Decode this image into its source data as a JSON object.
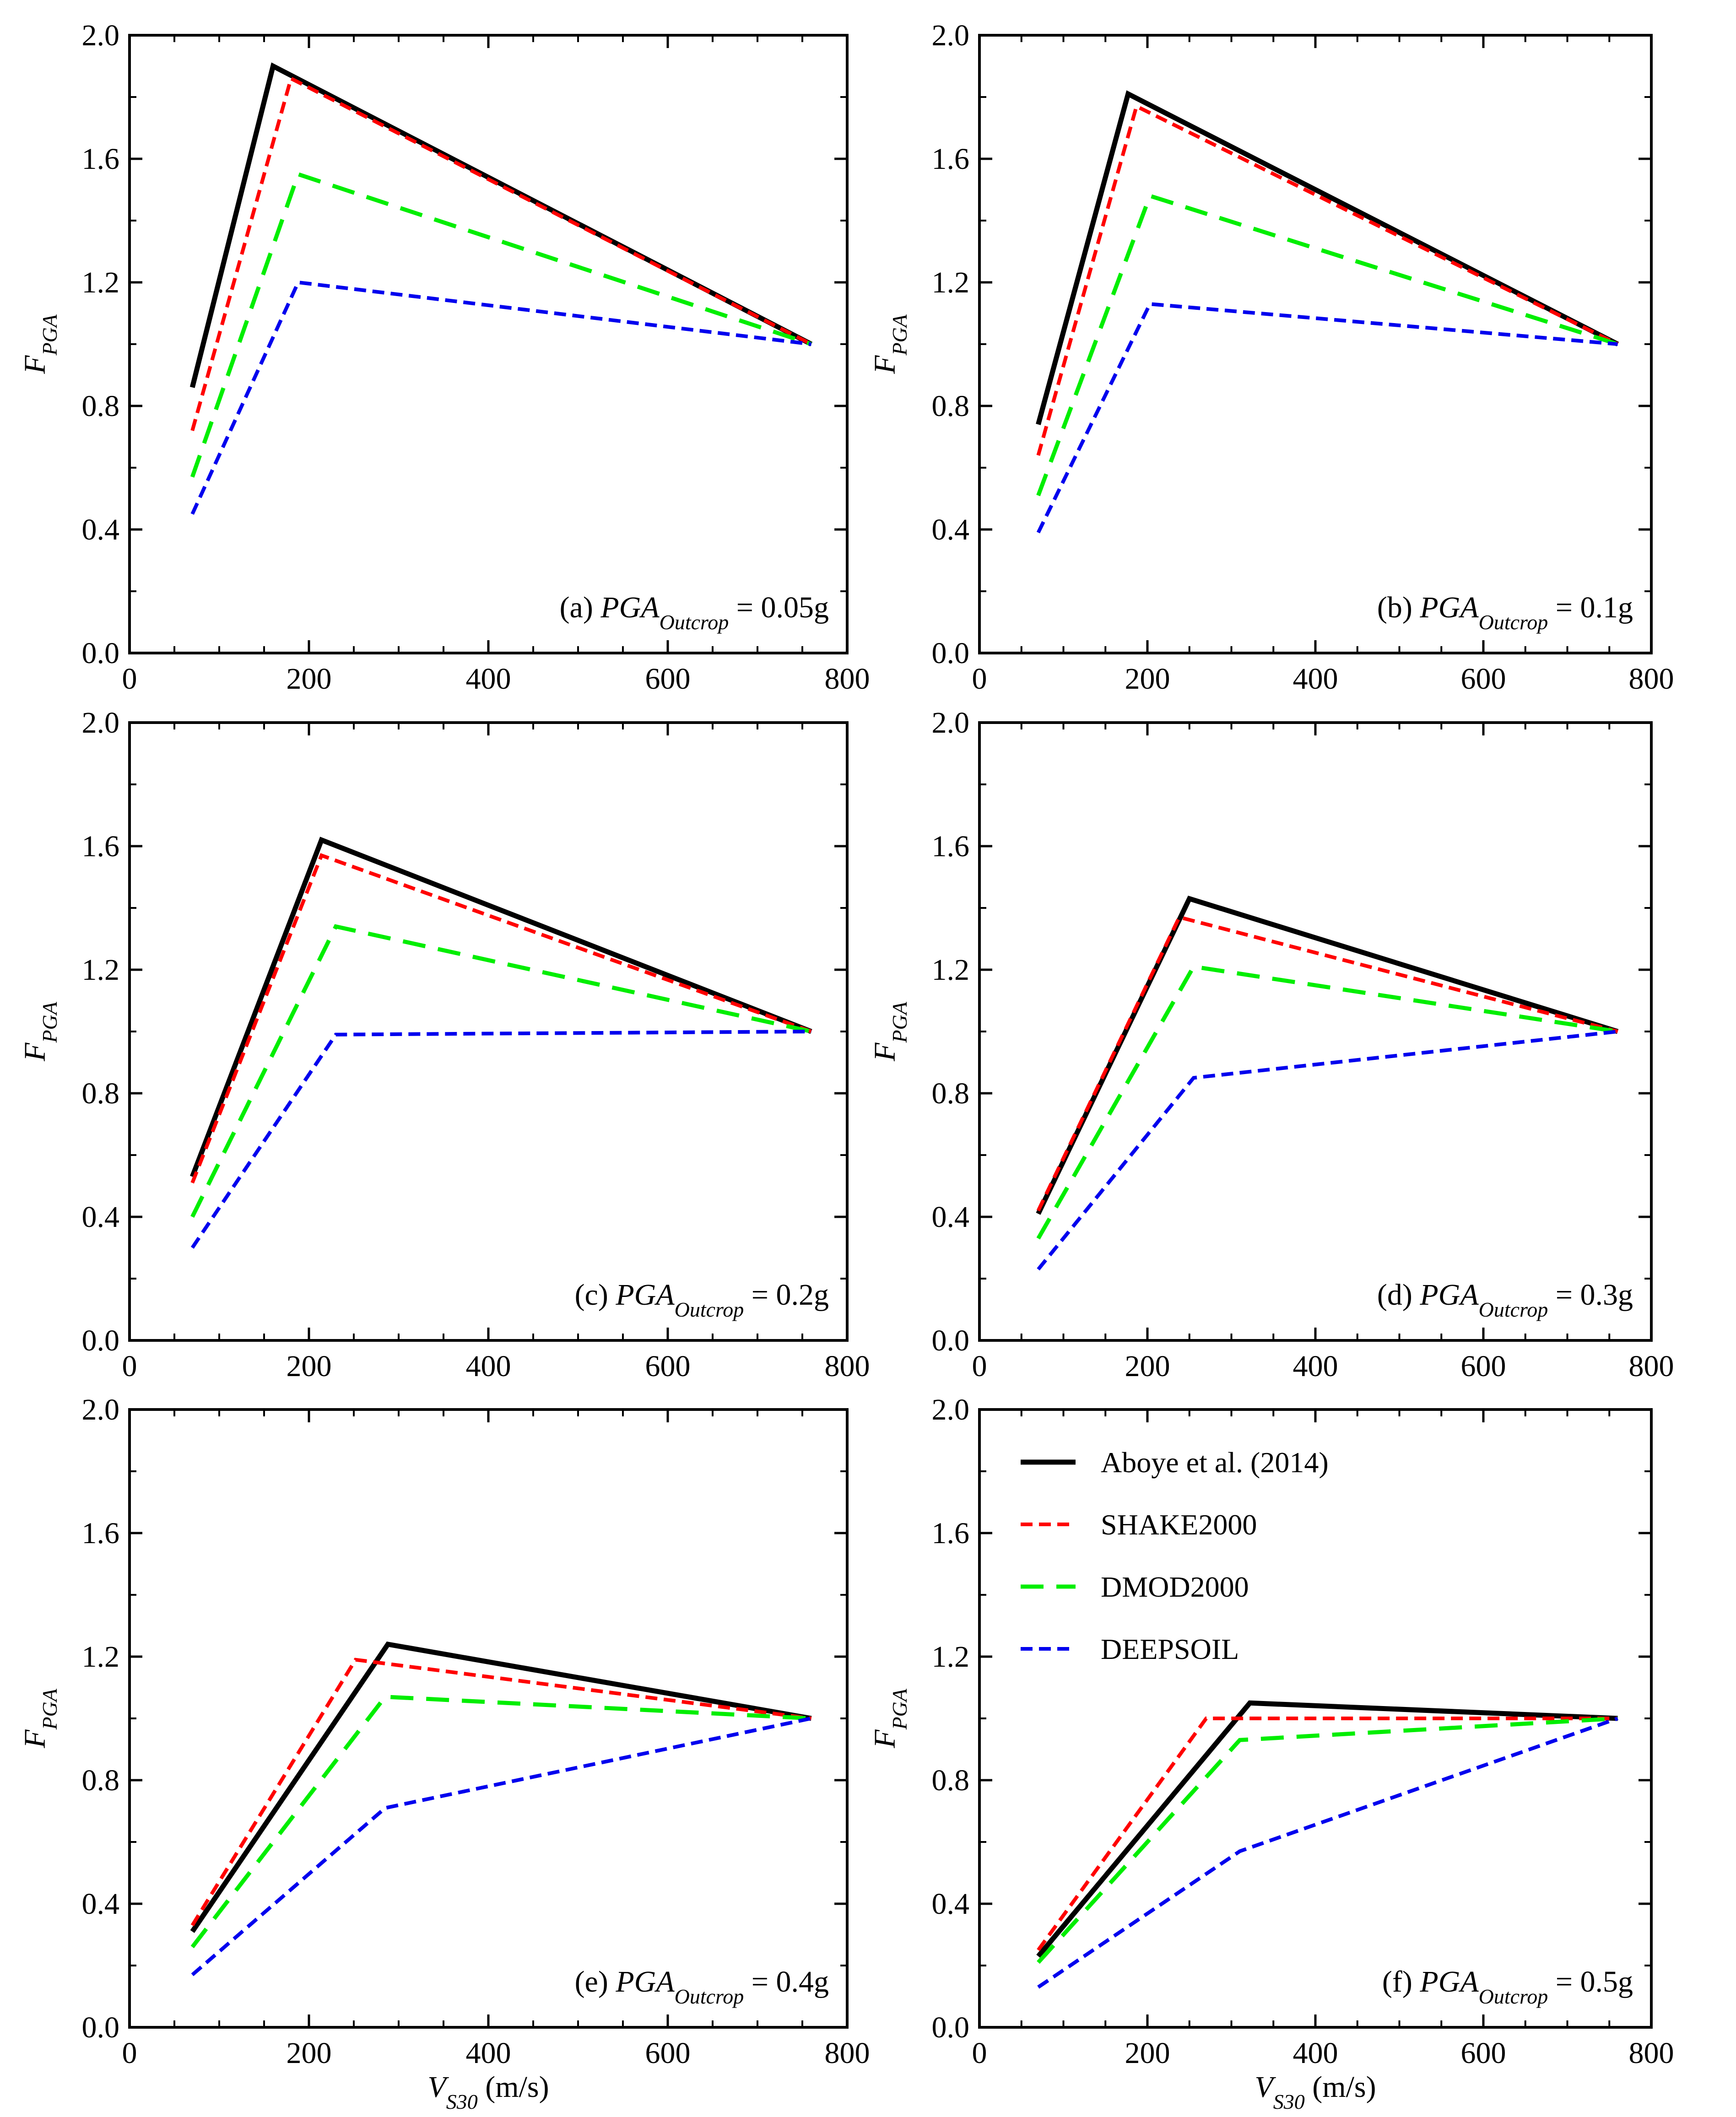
{
  "chart_data": [
    {
      "id": "a",
      "type": "line",
      "annotation": {
        "prefix": "(a) ",
        "base": "PGA",
        "sub": "Outcrop",
        "suffix": " = 0.05g"
      },
      "xlabel": {
        "base": "V",
        "sub": "S30",
        "unit": " (m/s)"
      },
      "ylabel": {
        "base": "F",
        "sub": "PGA"
      },
      "xlim": [
        0,
        800
      ],
      "ylim": [
        0.0,
        2.0
      ],
      "xticks": [
        "0",
        "200",
        "400",
        "600",
        "800"
      ],
      "yticks": [
        "0.0",
        "0.4",
        "0.8",
        "1.2",
        "1.6",
        "2.0"
      ],
      "series": [
        {
          "name": "Aboye et al. (2014)",
          "x": [
            70,
            160,
            760
          ],
          "y": [
            0.86,
            1.9,
            1.0
          ]
        },
        {
          "name": "SHAKE2000",
          "x": [
            70,
            180,
            760
          ],
          "y": [
            0.72,
            1.86,
            1.0
          ]
        },
        {
          "name": "DMOD2000",
          "x": [
            70,
            188,
            760
          ],
          "y": [
            0.57,
            1.55,
            1.0
          ]
        },
        {
          "name": "DEEPSOIL",
          "x": [
            70,
            188,
            760
          ],
          "y": [
            0.45,
            1.2,
            1.0
          ]
        }
      ]
    },
    {
      "id": "b",
      "type": "line",
      "annotation": {
        "prefix": "(b) ",
        "base": "PGA",
        "sub": "Outcrop",
        "suffix": " = 0.1g"
      },
      "xlabel": {
        "base": "V",
        "sub": "S30",
        "unit": " (m/s)"
      },
      "ylabel": {
        "base": "F",
        "sub": "PGA"
      },
      "xlim": [
        0,
        800
      ],
      "ylim": [
        0.0,
        2.0
      ],
      "xticks": [
        "0",
        "200",
        "400",
        "600",
        "800"
      ],
      "yticks": [
        "0.0",
        "0.4",
        "0.8",
        "1.2",
        "1.6",
        "2.0"
      ],
      "series": [
        {
          "name": "Aboye et al. (2014)",
          "x": [
            70,
            177,
            760
          ],
          "y": [
            0.74,
            1.81,
            1.0
          ]
        },
        {
          "name": "SHAKE2000",
          "x": [
            70,
            187,
            760
          ],
          "y": [
            0.64,
            1.77,
            1.0
          ]
        },
        {
          "name": "DMOD2000",
          "x": [
            70,
            203,
            760
          ],
          "y": [
            0.51,
            1.48,
            1.0
          ]
        },
        {
          "name": "DEEPSOIL",
          "x": [
            70,
            203,
            760
          ],
          "y": [
            0.39,
            1.13,
            1.0
          ]
        }
      ]
    },
    {
      "id": "c",
      "type": "line",
      "annotation": {
        "prefix": "(c) ",
        "base": "PGA",
        "sub": "Outcrop",
        "suffix": " = 0.2g"
      },
      "xlabel": {
        "base": "V",
        "sub": "S30",
        "unit": " (m/s)"
      },
      "ylabel": {
        "base": "F",
        "sub": "PGA"
      },
      "xlim": [
        0,
        800
      ],
      "ylim": [
        0.0,
        2.0
      ],
      "xticks": [
        "0",
        "200",
        "400",
        "600",
        "800"
      ],
      "yticks": [
        "0.0",
        "0.4",
        "0.8",
        "1.2",
        "1.6",
        "2.0"
      ],
      "series": [
        {
          "name": "Aboye et al. (2014)",
          "x": [
            70,
            214,
            760
          ],
          "y": [
            0.53,
            1.62,
            1.0
          ]
        },
        {
          "name": "SHAKE2000",
          "x": [
            70,
            214,
            760
          ],
          "y": [
            0.51,
            1.57,
            1.0
          ]
        },
        {
          "name": "DMOD2000",
          "x": [
            70,
            230,
            760
          ],
          "y": [
            0.4,
            1.34,
            1.0
          ]
        },
        {
          "name": "DEEPSOIL",
          "x": [
            70,
            230,
            760
          ],
          "y": [
            0.3,
            0.99,
            1.0
          ]
        }
      ]
    },
    {
      "id": "d",
      "type": "line",
      "annotation": {
        "prefix": "(d) ",
        "base": "PGA",
        "sub": "Outcrop",
        "suffix": " = 0.3g"
      },
      "xlabel": {
        "base": "V",
        "sub": "S30",
        "unit": " (m/s)"
      },
      "ylabel": {
        "base": "F",
        "sub": "PGA"
      },
      "xlim": [
        0,
        800
      ],
      "ylim": [
        0.0,
        2.0
      ],
      "xticks": [
        "0",
        "200",
        "400",
        "600",
        "800"
      ],
      "yticks": [
        "0.0",
        "0.4",
        "0.8",
        "1.2",
        "1.6",
        "2.0"
      ],
      "series": [
        {
          "name": "Aboye et al. (2014)",
          "x": [
            70,
            250,
            760
          ],
          "y": [
            0.41,
            1.43,
            1.0
          ]
        },
        {
          "name": "SHAKE2000",
          "x": [
            70,
            238,
            760
          ],
          "y": [
            0.42,
            1.37,
            1.0
          ]
        },
        {
          "name": "DMOD2000",
          "x": [
            70,
            255,
            760
          ],
          "y": [
            0.33,
            1.21,
            1.0
          ]
        },
        {
          "name": "DEEPSOIL",
          "x": [
            70,
            255,
            760
          ],
          "y": [
            0.23,
            0.85,
            1.0
          ]
        }
      ]
    },
    {
      "id": "e",
      "type": "line",
      "annotation": {
        "prefix": "(e) ",
        "base": "PGA",
        "sub": "Outcrop",
        "suffix": " = 0.4g"
      },
      "xlabel": {
        "base": "V",
        "sub": "S30",
        "unit": " (m/s)"
      },
      "ylabel": {
        "base": "F",
        "sub": "PGA"
      },
      "xlim": [
        0,
        800
      ],
      "ylim": [
        0.0,
        2.0
      ],
      "xticks": [
        "0",
        "200",
        "400",
        "600",
        "800"
      ],
      "yticks": [
        "0.0",
        "0.4",
        "0.8",
        "1.2",
        "1.6",
        "2.0"
      ],
      "series": [
        {
          "name": "Aboye et al. (2014)",
          "x": [
            70,
            288,
            760
          ],
          "y": [
            0.31,
            1.24,
            1.0
          ]
        },
        {
          "name": "SHAKE2000",
          "x": [
            70,
            252,
            760
          ],
          "y": [
            0.33,
            1.19,
            1.0
          ]
        },
        {
          "name": "DMOD2000",
          "x": [
            70,
            285,
            760
          ],
          "y": [
            0.26,
            1.07,
            1.0
          ]
        },
        {
          "name": "DEEPSOIL",
          "x": [
            70,
            285,
            760
          ],
          "y": [
            0.17,
            0.71,
            1.0
          ]
        }
      ]
    },
    {
      "id": "f",
      "type": "line",
      "annotation": {
        "prefix": "(f) ",
        "base": "PGA",
        "sub": "Outcrop",
        "suffix": " = 0.5g"
      },
      "xlabel": {
        "base": "V",
        "sub": "S30",
        "unit": " (m/s)"
      },
      "ylabel": {
        "base": "F",
        "sub": "PGA"
      },
      "xlim": [
        0,
        800
      ],
      "ylim": [
        0.0,
        2.0
      ],
      "xticks": [
        "0",
        "200",
        "400",
        "600",
        "800"
      ],
      "yticks": [
        "0.0",
        "0.4",
        "0.8",
        "1.2",
        "1.6",
        "2.0"
      ],
      "legend": {
        "position": "top-left"
      },
      "series": [
        {
          "name": "Aboye et al. (2014)",
          "x": [
            70,
            322,
            760
          ],
          "y": [
            0.23,
            1.05,
            1.0
          ]
        },
        {
          "name": "SHAKE2000",
          "x": [
            70,
            270,
            760
          ],
          "y": [
            0.25,
            1.0,
            1.0
          ]
        },
        {
          "name": "DMOD2000",
          "x": [
            70,
            310,
            760
          ],
          "y": [
            0.21,
            0.93,
            1.0
          ]
        },
        {
          "name": "DEEPSOIL",
          "x": [
            70,
            310,
            760
          ],
          "y": [
            0.13,
            0.57,
            1.0
          ]
        }
      ]
    }
  ],
  "series_styles": [
    {
      "name": "Aboye et al. (2014)",
      "color": "#000000",
      "dash": "solid"
    },
    {
      "name": "SHAKE2000",
      "color": "#ff0000",
      "dash": "dashed-short"
    },
    {
      "name": "DMOD2000",
      "color": "#00ee00",
      "dash": "dashed-long"
    },
    {
      "name": "DEEPSOIL",
      "color": "#0000ee",
      "dash": "dashed-short"
    }
  ]
}
